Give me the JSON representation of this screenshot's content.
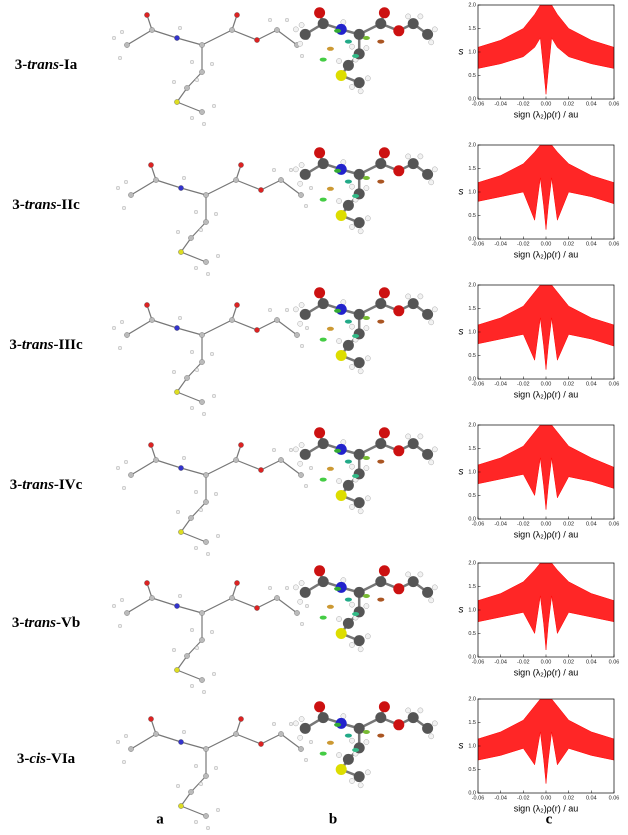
{
  "rows": [
    {
      "prefix": "3-",
      "isomer": "trans",
      "suffix": "-Ia"
    },
    {
      "prefix": "3-",
      "isomer": "trans",
      "suffix": "-IIc"
    },
    {
      "prefix": "3-",
      "isomer": "trans",
      "suffix": "-IIIc"
    },
    {
      "prefix": "3-",
      "isomer": "trans",
      "suffix": "-IVc"
    },
    {
      "prefix": "3-",
      "isomer": "trans",
      "suffix": "-Vb"
    },
    {
      "prefix": "3-",
      "isomer": "cis",
      "suffix": "-VIa"
    }
  ],
  "column_labels": [
    "a",
    "b",
    "c"
  ],
  "chart_data": [
    {
      "type": "area",
      "xlabel": "sign (λ₂)ρ(r) / au",
      "ylabel": "s",
      "x": [
        -0.06,
        -0.04,
        -0.02,
        -0.01,
        -0.005,
        -0.002,
        0,
        0.002,
        0.005,
        0.01,
        0.02,
        0.04,
        0.06
      ],
      "series": [
        {
          "color": "#ff0000",
          "values": [
            1.1,
            1.25,
            1.5,
            1.8,
            2,
            2,
            2,
            2,
            2,
            1.8,
            1.5,
            1.25,
            1.1
          ]
        },
        {
          "color": "#ff0000",
          "values": [
            0.65,
            0.75,
            0.9,
            1.1,
            1.3,
            0.6,
            0.1,
            0.6,
            1.3,
            1.1,
            0.9,
            0.75,
            0.65
          ]
        }
      ],
      "xlim": [
        -0.06,
        0.06
      ],
      "ylim": [
        0,
        2
      ],
      "xticks": [
        -0.06,
        -0.04,
        -0.02,
        {
          "value": 0,
          "label": "0.00"
        },
        0.02,
        0.04,
        0.06
      ],
      "yticks": [
        {
          "value": 0,
          "label": "0.0"
        },
        0.5,
        {
          "value": 1,
          "label": "1.0"
        },
        1.5,
        {
          "value": 2,
          "label": "2.0"
        }
      ]
    },
    {
      "type": "area",
      "xlabel": "sign (λ₂)ρ(r) / au",
      "ylabel": "s",
      "x": [
        -0.06,
        -0.04,
        -0.02,
        -0.01,
        -0.005,
        -0.002,
        0,
        0.002,
        0.005,
        0.01,
        0.02,
        0.04,
        0.06
      ],
      "series": [
        {
          "color": "#ff0000",
          "values": [
            1.2,
            1.35,
            1.6,
            1.85,
            2,
            2,
            2,
            2,
            2,
            1.85,
            1.6,
            1.35,
            1.2
          ]
        },
        {
          "color": "#ff0000",
          "values": [
            0.8,
            0.9,
            1.0,
            0.4,
            1.3,
            0.7,
            0.2,
            0.7,
            1.3,
            0.4,
            1.0,
            0.9,
            0.75
          ]
        }
      ],
      "xlim": [
        -0.06,
        0.06
      ],
      "ylim": [
        0,
        2
      ],
      "xticks": [
        -0.06,
        -0.04,
        -0.02,
        {
          "value": 0,
          "label": "0.00"
        },
        0.02,
        0.04,
        0.06
      ],
      "yticks": [
        {
          "value": 0,
          "label": "0.0"
        },
        0.5,
        {
          "value": 1,
          "label": "1.0"
        },
        1.5,
        {
          "value": 2,
          "label": "2.0"
        }
      ]
    },
    {
      "type": "area",
      "xlabel": "sign (λ₂)ρ(r) / au",
      "ylabel": "s",
      "x": [
        -0.06,
        -0.04,
        -0.02,
        -0.01,
        -0.005,
        -0.002,
        0,
        0.002,
        0.005,
        0.01,
        0.02,
        0.04,
        0.06
      ],
      "series": [
        {
          "color": "#ff0000",
          "values": [
            1.15,
            1.3,
            1.55,
            1.85,
            2,
            2,
            2,
            2,
            2,
            1.85,
            1.55,
            1.3,
            1.15
          ]
        },
        {
          "color": "#ff0000",
          "values": [
            0.75,
            0.85,
            0.95,
            0.4,
            1.3,
            0.7,
            0.2,
            0.7,
            1.3,
            0.4,
            0.95,
            0.85,
            0.7
          ]
        }
      ],
      "xlim": [
        -0.06,
        0.06
      ],
      "ylim": [
        0,
        2
      ],
      "xticks": [
        -0.06,
        -0.04,
        -0.02,
        {
          "value": 0,
          "label": "0.00"
        },
        0.02,
        0.04,
        0.06
      ],
      "yticks": [
        {
          "value": 0,
          "label": "0.0"
        },
        0.5,
        {
          "value": 1,
          "label": "1.0"
        },
        1.5,
        {
          "value": 2,
          "label": "2.0"
        }
      ]
    },
    {
      "type": "area",
      "xlabel": "sign (λ₂)ρ(r) / au",
      "ylabel": "s",
      "x": [
        -0.06,
        -0.04,
        -0.02,
        -0.01,
        -0.005,
        -0.002,
        0,
        0.002,
        0.005,
        0.01,
        0.02,
        0.04,
        0.06
      ],
      "series": [
        {
          "color": "#ff0000",
          "values": [
            1.15,
            1.3,
            1.55,
            1.85,
            2,
            2,
            2,
            2,
            2,
            1.85,
            1.55,
            1.3,
            1.1
          ]
        },
        {
          "color": "#ff0000",
          "values": [
            0.75,
            0.85,
            0.95,
            0.5,
            1.3,
            0.7,
            0.2,
            0.7,
            1.3,
            0.45,
            0.9,
            0.8,
            0.65
          ]
        }
      ],
      "xlim": [
        -0.06,
        0.06
      ],
      "ylim": [
        0,
        2
      ],
      "xticks": [
        -0.06,
        -0.04,
        -0.02,
        {
          "value": 0,
          "label": "0.00"
        },
        0.02,
        0.04,
        0.06
      ],
      "yticks": [
        {
          "value": 0,
          "label": "0.0"
        },
        0.5,
        {
          "value": 1,
          "label": "1.0"
        },
        1.5,
        {
          "value": 2,
          "label": "2.0"
        }
      ]
    },
    {
      "type": "area",
      "xlabel": "sign (λ₂)ρ(r) / au",
      "ylabel": "s",
      "x": [
        -0.06,
        -0.04,
        -0.02,
        -0.01,
        -0.005,
        -0.002,
        0,
        0.002,
        0.005,
        0.01,
        0.02,
        0.04,
        0.06
      ],
      "series": [
        {
          "color": "#ff0000",
          "values": [
            1.2,
            1.35,
            1.6,
            1.85,
            2,
            2,
            2,
            2,
            2,
            1.85,
            1.6,
            1.35,
            1.2
          ]
        },
        {
          "color": "#ff0000",
          "values": [
            0.75,
            0.85,
            0.95,
            0.5,
            1.3,
            0.7,
            0.15,
            0.7,
            1.3,
            0.5,
            0.95,
            0.85,
            0.75
          ]
        }
      ],
      "xlim": [
        -0.06,
        0.06
      ],
      "ylim": [
        0,
        2
      ],
      "xticks": [
        -0.06,
        -0.04,
        -0.02,
        {
          "value": 0,
          "label": "0.00"
        },
        0.02,
        0.04,
        0.06
      ],
      "yticks": [
        {
          "value": 0,
          "label": "0.0"
        },
        0.5,
        {
          "value": 1,
          "label": "1.0"
        },
        1.5,
        {
          "value": 2,
          "label": "2.0"
        }
      ]
    },
    {
      "type": "area",
      "xlabel": "sign (λ₂)ρ(r) / au",
      "ylabel": "s",
      "x": [
        -0.06,
        -0.04,
        -0.02,
        -0.01,
        -0.005,
        -0.002,
        0,
        0.002,
        0.005,
        0.01,
        0.02,
        0.04,
        0.06
      ],
      "series": [
        {
          "color": "#ff0000",
          "values": [
            1.15,
            1.3,
            1.55,
            1.85,
            2,
            2,
            2,
            2,
            2,
            1.85,
            1.55,
            1.3,
            1.15
          ]
        },
        {
          "color": "#ff0000",
          "values": [
            0.7,
            0.8,
            0.95,
            0.6,
            1.3,
            0.7,
            0.2,
            0.7,
            1.3,
            0.6,
            0.95,
            0.8,
            0.7
          ]
        }
      ],
      "xlim": [
        -0.06,
        0.06
      ],
      "ylim": [
        0,
        2
      ],
      "xticks": [
        -0.06,
        -0.04,
        -0.02,
        {
          "value": 0,
          "label": "0.00"
        },
        0.02,
        0.04,
        0.06
      ],
      "yticks": [
        {
          "value": 0,
          "label": "0.0"
        },
        0.5,
        {
          "value": 1,
          "label": "1.0"
        },
        1.5,
        {
          "value": 2,
          "label": "2.0"
        }
      ]
    }
  ]
}
